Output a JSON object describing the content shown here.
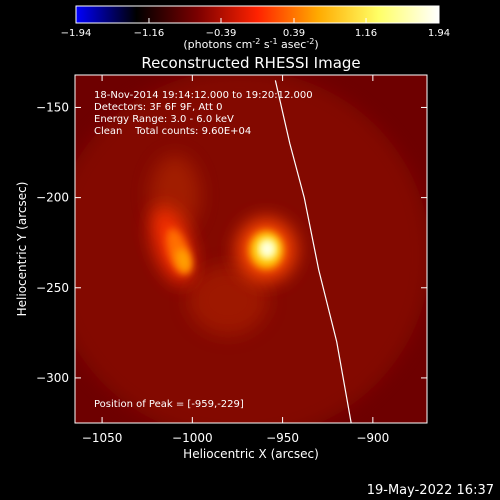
{
  "colorbar": {
    "ticks": [
      "-1.94",
      "-1.16",
      "-0.39",
      "0.39",
      "1.16",
      "1.94"
    ],
    "tick_values": [
      -1.94,
      -1.16,
      -0.39,
      0.39,
      1.16,
      1.94
    ],
    "unit_main": "(photons cm",
    "unit_sup1": "-2",
    "unit_mid": " s",
    "unit_sup2": "-1",
    "unit_end": " asec",
    "unit_sup3": "-2",
    "unit_close": ")",
    "stops": [
      "#0000ff",
      "#000000",
      "#7a0000",
      "#ff2200",
      "#ffaa00",
      "#ffff66",
      "#ffffff"
    ]
  },
  "title": "Reconstructed RHESSI Image",
  "info": {
    "line1": "18-Nov-2014 19:14:12.000 to 19:20:12.000",
    "line2": "Detectors: 3F 6F 9F, Att 0",
    "line3": "Energy Range: 3.0 - 6.0 keV",
    "line4": "Clean    Total counts: 9.60E+04",
    "peak": "Position of Peak = [-959,-229]"
  },
  "footer_timestamp": "19-May-2022 16:37",
  "chart_data": {
    "type": "heatmap",
    "title": "Reconstructed RHESSI Image",
    "xlabel": "Heliocentric X (arcsec)",
    "ylabel": "Heliocentric Y (arcsec)",
    "xlim": [
      -1065,
      -870
    ],
    "ylim": [
      -325,
      -132
    ],
    "x_ticks": [
      -1050,
      -1000,
      -950,
      -900
    ],
    "y_ticks": [
      -150,
      -200,
      -250,
      -300
    ],
    "x_tick_labels": [
      "−1050",
      "−1000",
      "−950",
      "−900"
    ],
    "y_tick_labels": [
      "−150",
      "−200",
      "−250",
      "−300"
    ],
    "colorbar_range": [
      -1.94,
      1.94
    ],
    "sources": [
      {
        "x": -959,
        "y": -229,
        "intensity": 1.9
      },
      {
        "x": -1007,
        "y": -232,
        "intensity": 1.25
      }
    ],
    "limb_points": [
      {
        "x": -954,
        "y": -135
      },
      {
        "x": -946,
        "y": -170
      },
      {
        "x": -938,
        "y": -200
      },
      {
        "x": -930,
        "y": -240
      },
      {
        "x": -920,
        "y": -280
      },
      {
        "x": -912,
        "y": -325
      }
    ]
  }
}
